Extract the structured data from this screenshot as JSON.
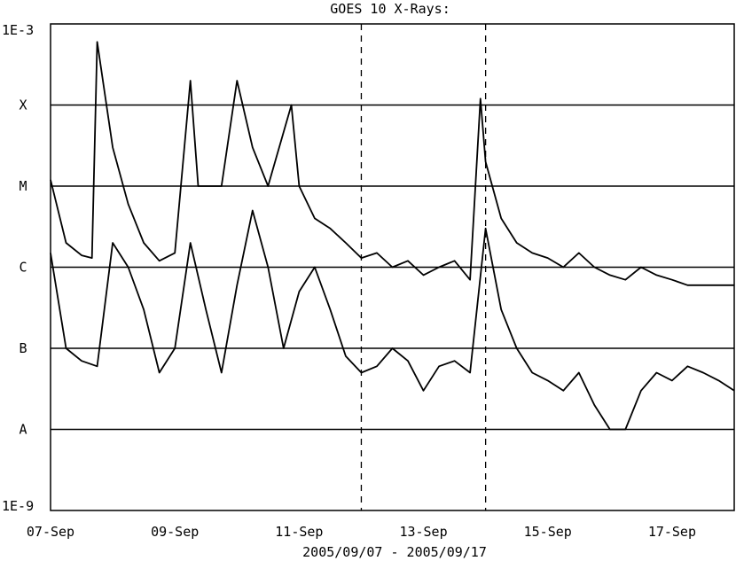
{
  "chart_data": {
    "type": "line",
    "title": "GOES 10 X-Rays:",
    "xlabel": "2005/09/07 - 2005/09/17",
    "ylabel": "",
    "y_scale": "log",
    "ylim": [
      1e-09,
      0.001
    ],
    "xlim": [
      "2005-09-07",
      "2005-09-18"
    ],
    "grid": {
      "horizontal": true,
      "vertical": false
    },
    "y_ticks": [
      {
        "value": 0.001,
        "label": "1E-3"
      },
      {
        "value": 0.0001,
        "label": "X"
      },
      {
        "value": 1e-05,
        "label": "M"
      },
      {
        "value": 1e-06,
        "label": "C"
      },
      {
        "value": 1e-07,
        "label": "B"
      },
      {
        "value": 1e-08,
        "label": "A"
      },
      {
        "value": 1e-09,
        "label": "1E-9"
      }
    ],
    "x_ticks": [
      {
        "value": "2005-09-07",
        "label": "07-Sep"
      },
      {
        "value": "2005-09-09",
        "label": "09-Sep"
      },
      {
        "value": "2005-09-11",
        "label": "11-Sep"
      },
      {
        "value": "2005-09-13",
        "label": "13-Sep"
      },
      {
        "value": "2005-09-15",
        "label": "15-Sep"
      },
      {
        "value": "2005-09-17",
        "label": "17-Sep"
      }
    ],
    "vertical_markers": [
      "2005-09-12",
      "2005-09-14"
    ],
    "series": [
      {
        "x": [
          "2005-09-07T00:00",
          "2005-09-07T06:00",
          "2005-09-07T12:00",
          "2005-09-07T16:00",
          "2005-09-07T18:00",
          "2005-09-08T00:00",
          "2005-09-08T06:00",
          "2005-09-08T12:00",
          "2005-09-08T18:00",
          "2005-09-09T00:00",
          "2005-09-09T06:00",
          "2005-09-09T09:00",
          "2005-09-09T14:00",
          "2005-09-09T18:00",
          "2005-09-10T00:00",
          "2005-09-10T06:00",
          "2005-09-10T12:00",
          "2005-09-10T21:00",
          "2005-09-11T00:00",
          "2005-09-11T06:00",
          "2005-09-11T12:00",
          "2005-09-11T18:00",
          "2005-09-12T00:00",
          "2005-09-12T06:00",
          "2005-09-12T12:00",
          "2005-09-12T18:00",
          "2005-09-13T00:00",
          "2005-09-13T06:00",
          "2005-09-13T12:00",
          "2005-09-13T18:00",
          "2005-09-13T22:00",
          "2005-09-14T00:00",
          "2005-09-14T06:00",
          "2005-09-14T12:00",
          "2005-09-14T18:00",
          "2005-09-15T00:00",
          "2005-09-15T06:00",
          "2005-09-15T12:00",
          "2005-09-15T18:00",
          "2005-09-16T00:00",
          "2005-09-16T06:00",
          "2005-09-16T12:00",
          "2005-09-16T18:00",
          "2005-09-17T00:00",
          "2005-09-17T06:00",
          "2005-09-17T12:00",
          "2005-09-17T18:00",
          "2005-09-18T00:00"
        ],
        "values": [
          1.2e-05,
          2e-06,
          1.4e-06,
          1.3e-06,
          0.0006,
          3e-05,
          6e-06,
          2e-06,
          1.2e-06,
          1.5e-06,
          0.0002,
          1e-05,
          1e-05,
          1e-05,
          0.0002,
          3e-05,
          1e-05,
          0.0001,
          1e-05,
          4e-06,
          3e-06,
          2e-06,
          1.3e-06,
          1.5e-06,
          1e-06,
          1.2e-06,
          8e-07,
          1e-06,
          1.2e-06,
          7e-07,
          0.00012,
          2e-05,
          4e-06,
          2e-06,
          1.5e-06,
          1.3e-06,
          1e-06,
          1.5e-06,
          1e-06,
          8e-07,
          7e-07,
          1e-06,
          8e-07,
          7e-07,
          6e-07,
          6e-07,
          6e-07,
          6e-07
        ]
      },
      {
        "x": [
          "2005-09-07T00:00",
          "2005-09-07T06:00",
          "2005-09-07T12:00",
          "2005-09-07T18:00",
          "2005-09-08T00:00",
          "2005-09-08T06:00",
          "2005-09-08T12:00",
          "2005-09-08T18:00",
          "2005-09-09T00:00",
          "2005-09-09T06:00",
          "2005-09-09T12:00",
          "2005-09-09T18:00",
          "2005-09-10T00:00",
          "2005-09-10T06:00",
          "2005-09-10T12:00",
          "2005-09-10T18:00",
          "2005-09-11T00:00",
          "2005-09-11T06:00",
          "2005-09-11T12:00",
          "2005-09-11T18:00",
          "2005-09-12T00:00",
          "2005-09-12T06:00",
          "2005-09-12T12:00",
          "2005-09-12T18:00",
          "2005-09-13T00:00",
          "2005-09-13T06:00",
          "2005-09-13T12:00",
          "2005-09-13T18:00",
          "2005-09-14T00:00",
          "2005-09-14T06:00",
          "2005-09-14T12:00",
          "2005-09-14T18:00",
          "2005-09-15T00:00",
          "2005-09-15T06:00",
          "2005-09-15T12:00",
          "2005-09-15T18:00",
          "2005-09-16T00:00",
          "2005-09-16T06:00",
          "2005-09-16T12:00",
          "2005-09-16T18:00",
          "2005-09-17T00:00",
          "2005-09-17T06:00",
          "2005-09-17T12:00",
          "2005-09-17T18:00",
          "2005-09-18T00:00"
        ],
        "values": [
          1.5e-06,
          1e-07,
          7e-08,
          6e-08,
          2e-06,
          1e-06,
          3e-07,
          5e-08,
          1e-07,
          2e-06,
          3e-07,
          5e-08,
          6e-07,
          5e-06,
          1e-06,
          1e-07,
          5e-07,
          1e-06,
          3e-07,
          8e-08,
          5e-08,
          6e-08,
          1e-07,
          7e-08,
          3e-08,
          6e-08,
          7e-08,
          5e-08,
          3e-06,
          3e-07,
          1e-07,
          5e-08,
          4e-08,
          3e-08,
          5e-08,
          2e-08,
          1e-08,
          1e-08,
          3e-08,
          5e-08,
          4e-08,
          6e-08,
          5e-08,
          4e-08,
          3e-08
        ]
      }
    ]
  }
}
